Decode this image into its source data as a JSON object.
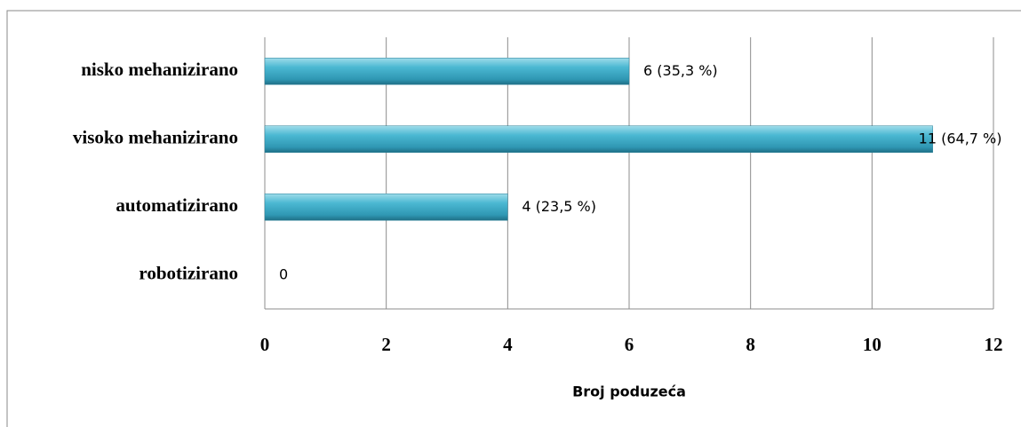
{
  "chart_data": {
    "type": "barh",
    "categories": [
      "nisko mehanizirano",
      "visoko mehanizirano",
      "automatizirano",
      "robotizirano"
    ],
    "values": [
      6,
      11,
      4,
      0
    ],
    "value_labels": [
      "6 (35,3 %)",
      "11 (64,7 %)",
      "4 (23,5 %)",
      "0"
    ],
    "color": "#4bacc6",
    "xlabel": "Broj poduzeća",
    "xlim": [
      0,
      12
    ],
    "xticks": [
      0,
      2,
      4,
      6,
      8,
      10,
      12
    ],
    "grid": true
  }
}
